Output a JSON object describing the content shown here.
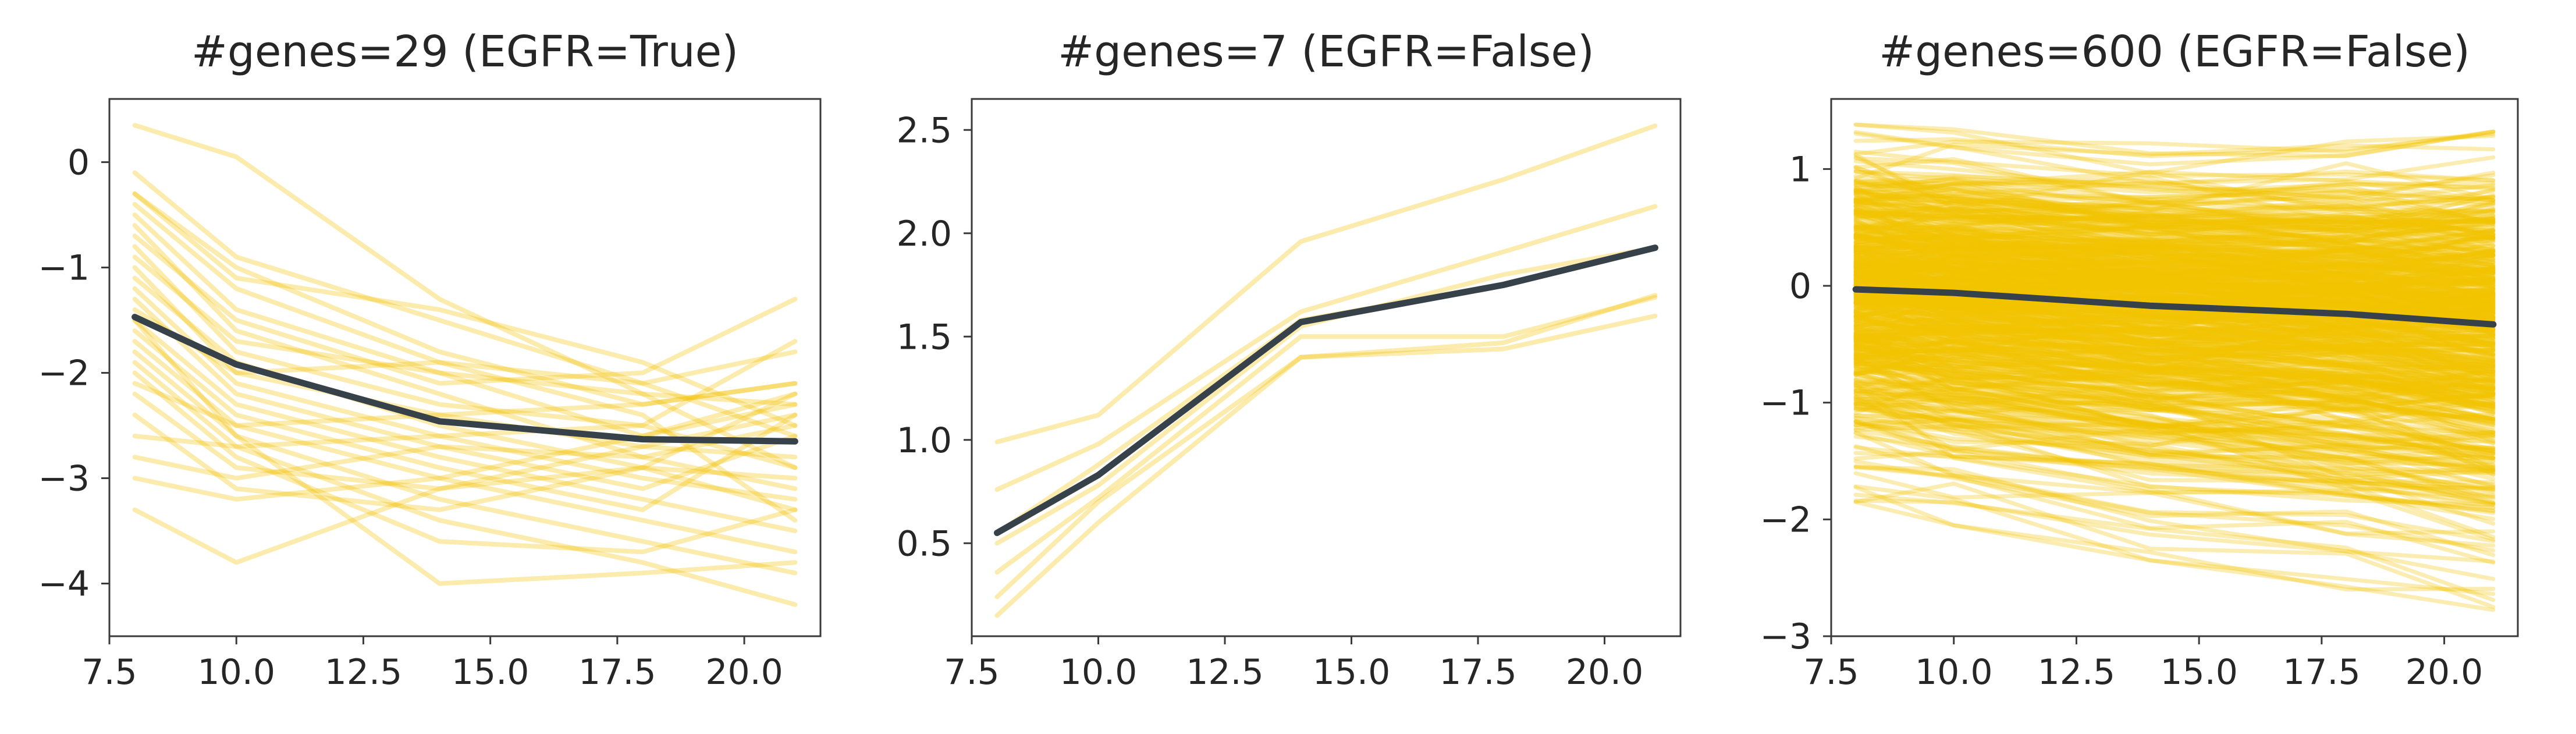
{
  "colors": {
    "gene_line": "#F2C200",
    "mean_line": "#36414A",
    "axis": "#3a3a3a",
    "text": "#262626"
  },
  "chart_data": [
    {
      "type": "line",
      "title": "#genes=29 (EGFR=True)",
      "xlabel": "",
      "ylabel": "",
      "xlim": [
        7.5,
        21.5
      ],
      "ylim": [
        -4.5,
        0.6
      ],
      "xticks": [
        "7.5",
        "10.0",
        "12.5",
        "15.0",
        "17.5",
        "20.0"
      ],
      "xtick_values": [
        7.5,
        10.0,
        12.5,
        15.0,
        17.5,
        20.0
      ],
      "yticks": [
        "0",
        "−1",
        "−2",
        "−3",
        "−4"
      ],
      "ytick_values": [
        0,
        -1,
        -2,
        -3,
        -4
      ],
      "grid": false,
      "line_alpha": 0.32,
      "x": [
        8,
        10,
        14,
        18,
        21
      ],
      "series": [
        {
          "values": [
            0.35,
            0.05,
            -1.3,
            -2.2,
            -2.9
          ]
        },
        {
          "values": [
            -0.1,
            -0.9,
            -1.5,
            -2.1,
            -2.6
          ]
        },
        {
          "values": [
            -0.3,
            -1.0,
            -1.8,
            -2.3,
            -2.1
          ]
        },
        {
          "values": [
            -0.4,
            -1.2,
            -1.9,
            -2.4,
            -3.4
          ]
        },
        {
          "values": [
            -0.5,
            -1.4,
            -2.0,
            -2.6,
            -2.2
          ]
        },
        {
          "values": [
            -0.6,
            -1.6,
            -2.2,
            -2.8,
            -2.5
          ]
        },
        {
          "values": [
            -0.7,
            -1.5,
            -2.1,
            -2.0,
            -1.3
          ]
        },
        {
          "values": [
            -0.8,
            -1.8,
            -2.3,
            -2.5,
            -1.7
          ]
        },
        {
          "values": [
            -0.9,
            -1.7,
            -2.0,
            -2.2,
            -2.3
          ]
        },
        {
          "values": [
            -1.0,
            -2.0,
            -2.4,
            -2.7,
            -2.8
          ]
        },
        {
          "values": [
            -1.1,
            -1.9,
            -2.5,
            -2.9,
            -3.0
          ]
        },
        {
          "values": [
            -1.2,
            -2.1,
            -2.6,
            -3.0,
            -3.2
          ]
        },
        {
          "values": [
            -1.3,
            -2.2,
            -2.7,
            -3.1,
            -2.6
          ]
        },
        {
          "values": [
            -1.4,
            -2.0,
            -1.9,
            -2.1,
            -1.8
          ]
        },
        {
          "values": [
            -1.5,
            -2.3,
            -2.8,
            -3.2,
            -3.5
          ]
        },
        {
          "values": [
            -1.6,
            -2.4,
            -2.9,
            -3.3,
            -2.4
          ]
        },
        {
          "values": [
            -1.7,
            -2.5,
            -3.0,
            -3.4,
            -3.7
          ]
        },
        {
          "values": [
            -1.8,
            -2.6,
            -3.2,
            -3.6,
            -3.9
          ]
        },
        {
          "values": [
            -1.9,
            -2.7,
            -3.4,
            -3.8,
            -4.2
          ]
        },
        {
          "values": [
            -2.0,
            -2.8,
            -3.6,
            -3.7,
            -3.3
          ]
        },
        {
          "values": [
            -2.1,
            -2.5,
            -2.4,
            -2.3,
            -2.1
          ]
        },
        {
          "values": [
            -2.2,
            -2.9,
            -3.1,
            -2.7,
            -2.4
          ]
        },
        {
          "values": [
            -2.4,
            -3.1,
            -3.3,
            -2.9,
            -2.2
          ]
        },
        {
          "values": [
            -2.6,
            -2.7,
            -2.6,
            -2.5,
            -2.9
          ]
        },
        {
          "values": [
            -2.8,
            -3.0,
            -2.7,
            -2.8,
            -3.1
          ]
        },
        {
          "values": [
            -3.0,
            -3.2,
            -3.0,
            -2.6,
            -2.3
          ]
        },
        {
          "values": [
            -3.3,
            -3.8,
            -3.1,
            -2.9,
            -3.3
          ]
        },
        {
          "values": [
            -0.3,
            -1.1,
            -1.4,
            -1.9,
            -2.5
          ]
        },
        {
          "values": [
            -1.5,
            -2.6,
            -4.0,
            -3.9,
            -3.8
          ]
        }
      ],
      "mean": {
        "values": [
          -1.47,
          -1.92,
          -2.46,
          -2.63,
          -2.65
        ]
      }
    },
    {
      "type": "line",
      "title": "#genes=7 (EGFR=False)",
      "xlabel": "",
      "ylabel": "",
      "xlim": [
        7.5,
        21.5
      ],
      "ylim": [
        0.05,
        2.65
      ],
      "xticks": [
        "7.5",
        "10.0",
        "12.5",
        "15.0",
        "17.5",
        "20.0"
      ],
      "xtick_values": [
        7.5,
        10.0,
        12.5,
        15.0,
        17.5,
        20.0
      ],
      "yticks": [
        "0.5",
        "1.0",
        "1.5",
        "2.0",
        "2.5"
      ],
      "ytick_values": [
        0.5,
        1.0,
        1.5,
        2.0,
        2.5
      ],
      "grid": false,
      "line_alpha": 0.32,
      "x": [
        8,
        10,
        14,
        18,
        21
      ],
      "series": [
        {
          "values": [
            0.99,
            1.12,
            1.96,
            2.26,
            2.52
          ]
        },
        {
          "values": [
            0.76,
            0.98,
            1.62,
            1.91,
            2.13
          ]
        },
        {
          "values": [
            0.55,
            0.88,
            1.58,
            1.75,
            1.93
          ]
        },
        {
          "values": [
            0.5,
            0.78,
            1.55,
            1.8,
            1.93
          ]
        },
        {
          "values": [
            0.36,
            0.72,
            1.5,
            1.5,
            1.69
          ]
        },
        {
          "values": [
            0.24,
            0.7,
            1.4,
            1.47,
            1.7
          ]
        },
        {
          "values": [
            0.15,
            0.6,
            1.4,
            1.44,
            1.6
          ]
        }
      ],
      "mean": {
        "values": [
          0.55,
          0.83,
          1.57,
          1.75,
          1.93
        ]
      }
    },
    {
      "type": "line",
      "title": "#genes=600 (EGFR=False)",
      "xlabel": "",
      "ylabel": "",
      "xlim": [
        7.5,
        21.5
      ],
      "ylim": [
        -3.0,
        1.6
      ],
      "xticks": [
        "7.5",
        "10.0",
        "12.5",
        "15.0",
        "17.5",
        "20.0"
      ],
      "xtick_values": [
        7.5,
        10.0,
        12.5,
        15.0,
        17.5,
        20.0
      ],
      "yticks": [
        "1",
        "0",
        "−1",
        "−2",
        "−3"
      ],
      "ytick_values": [
        1,
        0,
        -1,
        -2,
        -3
      ],
      "grid": false,
      "line_alpha": 0.3,
      "x": [
        8,
        10,
        14,
        18,
        21
      ],
      "series_count": 600,
      "series_envelope": {
        "upper": [
          1.38,
          1.34,
          1.22,
          1.25,
          1.32
        ],
        "lower": [
          -1.85,
          -2.05,
          -2.35,
          -2.6,
          -2.85
        ]
      },
      "mean": {
        "values": [
          -0.03,
          -0.06,
          -0.17,
          -0.24,
          -0.33
        ]
      }
    }
  ]
}
